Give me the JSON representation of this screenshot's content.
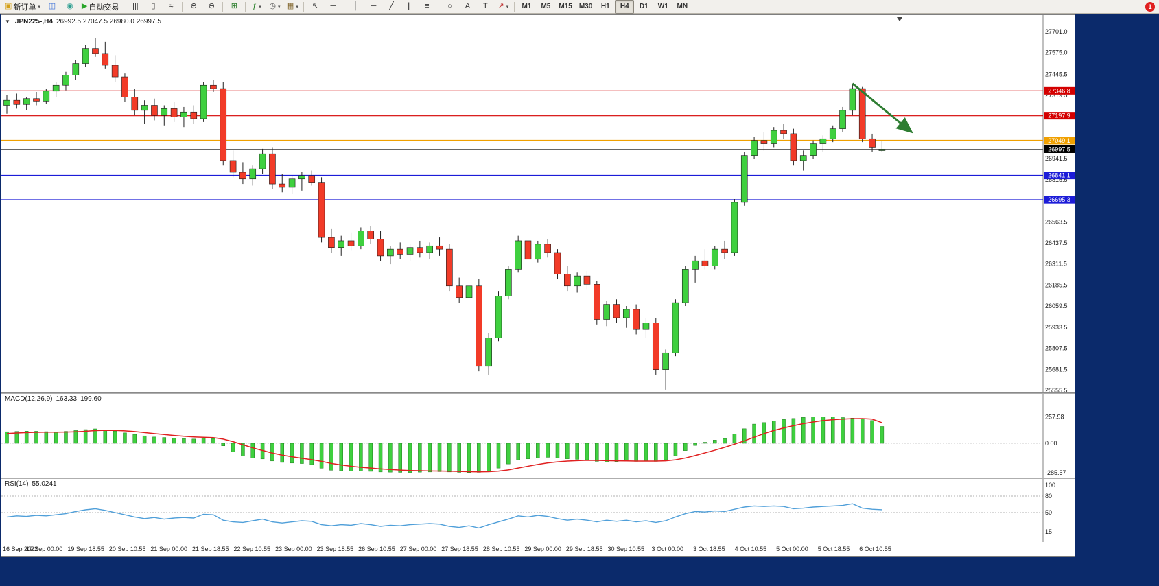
{
  "toolbar": {
    "notification_badge": "1",
    "timeframes": [
      "M1",
      "M5",
      "M15",
      "M30",
      "H1",
      "H4",
      "D1",
      "W1",
      "MN"
    ],
    "active_timeframe": "H4",
    "items": [
      {
        "name": "new-order-button",
        "icon": "new-order-icon",
        "label": "新订单",
        "caret": true
      },
      {
        "name": "market-watch-button",
        "icon": "market-watch-icon"
      },
      {
        "name": "data-window-button",
        "icon": "data-window-icon"
      },
      {
        "name": "autotrade-button",
        "icon": "autotrade-icon",
        "label": "自动交易"
      },
      {
        "sep": true
      },
      {
        "name": "bar-chart-button",
        "icon": "bar-chart-icon"
      },
      {
        "name": "candle-chart-button",
        "icon": "candle-chart-icon"
      },
      {
        "name": "line-chart-button",
        "icon": "line-chart-icon"
      },
      {
        "sep": true
      },
      {
        "name": "zoom-in-button",
        "icon": "zoom-in-icon"
      },
      {
        "name": "zoom-out-button",
        "icon": "zoom-out-icon"
      },
      {
        "sep": true
      },
      {
        "name": "tile-windows-button",
        "icon": "tile-windows-icon"
      },
      {
        "sep": true
      },
      {
        "name": "indicators-button",
        "icon": "indicators-icon",
        "caret": true
      },
      {
        "name": "periods-button",
        "icon": "clock-icon",
        "caret": true
      },
      {
        "name": "templates-button",
        "icon": "template-icon",
        "caret": true
      },
      {
        "sep": true
      },
      {
        "name": "cursor-button",
        "icon": "cursor-icon"
      },
      {
        "name": "crosshair-button",
        "icon": "crosshair-icon"
      },
      {
        "sep": true
      },
      {
        "name": "vertical-line-button",
        "icon": "vline-icon"
      },
      {
        "name": "horizontal-line-button",
        "icon": "hline-icon"
      },
      {
        "name": "trendline-button",
        "icon": "trendline-icon"
      },
      {
        "name": "channel-button",
        "icon": "channel-icon"
      },
      {
        "name": "fibonacci-button",
        "icon": "fibonacci-icon"
      },
      {
        "sep": true
      },
      {
        "name": "shapes-button",
        "icon": "shapes-icon"
      },
      {
        "name": "text-button",
        "icon": "text-icon"
      },
      {
        "name": "label-button",
        "icon": "label-icon"
      },
      {
        "name": "arrows-button",
        "icon": "arrow-tool-icon",
        "caret": true
      },
      {
        "sep": true
      }
    ],
    "icon_glyphs": {
      "new-order-icon": {
        "glyph": "▣",
        "color": "#d4a017"
      },
      "market-watch-icon": {
        "glyph": "◫",
        "color": "#3a6fd8"
      },
      "data-window-icon": {
        "glyph": "◉",
        "color": "#2a9d8f"
      },
      "autotrade-icon": {
        "glyph": "▶",
        "color": "#2aa52a"
      },
      "bar-chart-icon": {
        "glyph": "|||",
        "color": "#333333"
      },
      "candle-chart-icon": {
        "glyph": "▯",
        "color": "#333333"
      },
      "line-chart-icon": {
        "glyph": "≈",
        "color": "#333333"
      },
      "zoom-in-icon": {
        "glyph": "⊕",
        "color": "#333333"
      },
      "zoom-out-icon": {
        "glyph": "⊖",
        "color": "#333333"
      },
      "tile-windows-icon": {
        "glyph": "⊞",
        "color": "#2a7d2a"
      },
      "indicators-icon": {
        "glyph": "ƒ",
        "color": "#1f7a1f"
      },
      "clock-icon": {
        "glyph": "◷",
        "color": "#555555"
      },
      "template-icon": {
        "glyph": "▦",
        "color": "#7a5c1f"
      },
      "cursor-icon": {
        "glyph": "↖",
        "color": "#333333"
      },
      "crosshair-icon": {
        "glyph": "┼",
        "color": "#333333"
      },
      "vline-icon": {
        "glyph": "│",
        "color": "#333333"
      },
      "hline-icon": {
        "glyph": "─",
        "color": "#333333"
      },
      "trendline-icon": {
        "glyph": "╱",
        "color": "#333333"
      },
      "channel-icon": {
        "glyph": "∥",
        "color": "#333333"
      },
      "fibonacci-icon": {
        "glyph": "≡",
        "color": "#333333"
      },
      "shapes-icon": {
        "glyph": "○",
        "color": "#333333"
      },
      "text-icon": {
        "glyph": "A",
        "color": "#333333"
      },
      "label-icon": {
        "glyph": "T",
        "color": "#333333"
      },
      "arrow-tool-icon": {
        "glyph": "↗",
        "color": "#c03030"
      }
    }
  },
  "chart_window": {
    "collapse_icon": "▼",
    "symbol_period": "JPN225-,H4",
    "ohlc": "26992.5 27047.5 26980.0 26997.5"
  },
  "chart_data": {
    "type": "candlestick",
    "symbol": "JPN225-",
    "timeframe": "H4",
    "current_ohlc": {
      "open": 26992.5,
      "high": 27047.5,
      "low": 26980.0,
      "close": 26997.5
    },
    "current_price": 26997.5,
    "y_axis": {
      "top": 27701.0,
      "bottom": 25555.5,
      "labels": [
        "27701.0",
        "27575.0",
        "27445.5",
        "27319.5",
        "26941.5",
        "26815.5",
        "26563.5",
        "26437.5",
        "26311.5",
        "26185.5",
        "26059.5",
        "25933.5",
        "25807.5",
        "25681.5",
        "25555.5"
      ]
    },
    "x_axis_labels": [
      "16 Sep 2022",
      "19 Sep 00:00",
      "19 Sep 18:55",
      "20 Sep 10:55",
      "21 Sep 00:00",
      "21 Sep 18:55",
      "22 Sep 10:55",
      "23 Sep 00:00",
      "23 Sep 18:55",
      "26 Sep 10:55",
      "27 Sep 00:00",
      "27 Sep 18:55",
      "28 Sep 10:55",
      "29 Sep 00:00",
      "29 Sep 18:55",
      "30 Sep 10:55",
      "3 Oct 00:00",
      "3 Oct 18:55",
      "4 Oct 10:55",
      "5 Oct 00:00",
      "5 Oct 18:55",
      "6 Oct 10:55"
    ],
    "hlines": [
      {
        "price": 27346.8,
        "color": "red"
      },
      {
        "price": 27197.9,
        "color": "red"
      },
      {
        "price": 27049.1,
        "color": "orange"
      },
      {
        "price": 26841.1,
        "color": "blue"
      },
      {
        "price": 26695.3,
        "color": "blue"
      }
    ],
    "trend_arrow": {
      "from_bar": 86,
      "from_price": 27390,
      "to_bar": 92,
      "to_price": 27100
    },
    "colors": {
      "up": "#3fd03f",
      "down": "#f23b28",
      "wick": "#222222",
      "red": "#d40000",
      "blue": "#1c1cd8",
      "orange": "#f0a000",
      "current_line": "#666666",
      "current_badge": "#000000",
      "macd_hist": "#3fd03f",
      "macd_hist_stroke": "#1c7a1c",
      "macd_signal": "#e02020",
      "rsi": "#4f9fd9",
      "arrow": "#2e7d32"
    },
    "candles": [
      [
        27260,
        27320,
        27210,
        27290
      ],
      [
        27290,
        27330,
        27240,
        27265
      ],
      [
        27265,
        27310,
        27230,
        27300
      ],
      [
        27300,
        27340,
        27260,
        27285
      ],
      [
        27285,
        27360,
        27270,
        27345
      ],
      [
        27345,
        27400,
        27310,
        27380
      ],
      [
        27380,
        27460,
        27350,
        27440
      ],
      [
        27440,
        27530,
        27410,
        27510
      ],
      [
        27510,
        27620,
        27490,
        27600
      ],
      [
        27600,
        27660,
        27550,
        27570
      ],
      [
        27570,
        27640,
        27480,
        27500
      ],
      [
        27500,
        27560,
        27400,
        27430
      ],
      [
        27430,
        27450,
        27280,
        27310
      ],
      [
        27310,
        27360,
        27200,
        27230
      ],
      [
        27230,
        27290,
        27150,
        27260
      ],
      [
        27260,
        27300,
        27170,
        27200
      ],
      [
        27200,
        27260,
        27140,
        27240
      ],
      [
        27240,
        27280,
        27160,
        27190
      ],
      [
        27190,
        27250,
        27130,
        27220
      ],
      [
        27220,
        27260,
        27150,
        27180
      ],
      [
        27180,
        27400,
        27160,
        27380
      ],
      [
        27380,
        27410,
        27340,
        27360
      ],
      [
        27360,
        27400,
        26900,
        26930
      ],
      [
        26930,
        26990,
        26830,
        26860
      ],
      [
        26860,
        26920,
        26790,
        26820
      ],
      [
        26820,
        26900,
        26780,
        26880
      ],
      [
        26880,
        27000,
        26850,
        26970
      ],
      [
        26970,
        27010,
        26760,
        26790
      ],
      [
        26790,
        26850,
        26740,
        26770
      ],
      [
        26770,
        26840,
        26730,
        26820
      ],
      [
        26820,
        26860,
        26750,
        26840
      ],
      [
        26840,
        26870,
        26780,
        26800
      ],
      [
        26800,
        26830,
        26440,
        26470
      ],
      [
        26470,
        26520,
        26380,
        26410
      ],
      [
        26410,
        26480,
        26360,
        26450
      ],
      [
        26450,
        26500,
        26390,
        26420
      ],
      [
        26420,
        26530,
        26400,
        26510
      ],
      [
        26510,
        26540,
        26430,
        26460
      ],
      [
        26460,
        26510,
        26330,
        26360
      ],
      [
        26360,
        26420,
        26310,
        26400
      ],
      [
        26400,
        26440,
        26340,
        26370
      ],
      [
        26370,
        26430,
        26330,
        26410
      ],
      [
        26410,
        26450,
        26350,
        26380
      ],
      [
        26380,
        26440,
        26340,
        26420
      ],
      [
        26420,
        26470,
        26360,
        26400
      ],
      [
        26400,
        26430,
        26150,
        26180
      ],
      [
        26180,
        26230,
        26080,
        26110
      ],
      [
        26110,
        26200,
        26060,
        26180
      ],
      [
        26180,
        26220,
        25670,
        25700
      ],
      [
        25700,
        25900,
        25650,
        25870
      ],
      [
        25870,
        26150,
        25850,
        26120
      ],
      [
        26120,
        26300,
        26100,
        26280
      ],
      [
        26280,
        26480,
        26260,
        26450
      ],
      [
        26450,
        26470,
        26310,
        26340
      ],
      [
        26340,
        26450,
        26320,
        26430
      ],
      [
        26430,
        26460,
        26350,
        26380
      ],
      [
        26380,
        26400,
        26220,
        26250
      ],
      [
        26250,
        26300,
        26150,
        26180
      ],
      [
        26180,
        26260,
        26140,
        26240
      ],
      [
        26240,
        26270,
        26160,
        26190
      ],
      [
        26190,
        26210,
        25950,
        25980
      ],
      [
        25980,
        26090,
        25940,
        26070
      ],
      [
        26070,
        26100,
        25960,
        25990
      ],
      [
        25990,
        26060,
        25930,
        26040
      ],
      [
        26040,
        26070,
        25890,
        25920
      ],
      [
        25920,
        25990,
        25870,
        25960
      ],
      [
        25960,
        25990,
        25650,
        25680
      ],
      [
        25680,
        25800,
        25560,
        25780
      ],
      [
        25780,
        26100,
        25760,
        26080
      ],
      [
        26080,
        26300,
        26060,
        26280
      ],
      [
        26280,
        26360,
        26200,
        26330
      ],
      [
        26330,
        26400,
        26280,
        26300
      ],
      [
        26300,
        26420,
        26280,
        26400
      ],
      [
        26400,
        26450,
        26340,
        26380
      ],
      [
        26380,
        26700,
        26360,
        26680
      ],
      [
        26680,
        26980,
        26660,
        26960
      ],
      [
        26960,
        27070,
        26940,
        27050
      ],
      [
        27050,
        27100,
        26990,
        27030
      ],
      [
        27030,
        27130,
        27010,
        27110
      ],
      [
        27110,
        27150,
        27060,
        27090
      ],
      [
        27090,
        27120,
        26900,
        26930
      ],
      [
        26930,
        26990,
        26870,
        26960
      ],
      [
        26960,
        27050,
        26940,
        27030
      ],
      [
        27030,
        27080,
        26980,
        27060
      ],
      [
        27060,
        27140,
        27040,
        27120
      ],
      [
        27120,
        27250,
        27100,
        27230
      ],
      [
        27230,
        27390,
        27200,
        27360
      ],
      [
        27360,
        27370,
        27040,
        27060
      ],
      [
        27060,
        27090,
        26980,
        27010
      ],
      [
        26992.5,
        27047.5,
        26980.0,
        26997.5
      ]
    ],
    "macd": {
      "label": "MACD(12,26,9)",
      "main_value": "163.33",
      "signal_value": "199.60",
      "axis_labels": [
        "257.98",
        "0.00",
        "-285.57"
      ],
      "histogram": [
        112,
        115,
        118,
        117,
        113,
        110,
        116,
        124,
        133,
        140,
        131,
        119,
        101,
        86,
        72,
        61,
        56,
        51,
        46,
        41,
        50,
        46,
        -25,
        -85,
        -122,
        -142,
        -152,
        -172,
        -186,
        -192,
        -197,
        -207,
        -242,
        -262,
        -267,
        -271,
        -269,
        -273,
        -279,
        -281,
        -283,
        -284,
        -281,
        -279,
        -276,
        -279,
        -283,
        -285,
        -283,
        -270,
        -241,
        -201,
        -161,
        -151,
        -141,
        -136,
        -141,
        -151,
        -156,
        -161,
        -176,
        -181,
        -179,
        -173,
        -176,
        -171,
        -176,
        -161,
        -121,
        -71,
        -21,
        10,
        31,
        46,
        91,
        141,
        186,
        201,
        216,
        231,
        241,
        251,
        255,
        258,
        255,
        250,
        245,
        240,
        221,
        163.33
      ],
      "signal": [
        95,
        100,
        104,
        107,
        108,
        108,
        109,
        112,
        117,
        123,
        126,
        125,
        121,
        114,
        104,
        94,
        85,
        76,
        68,
        62,
        58,
        55,
        41,
        16,
        -14,
        -44,
        -70,
        -95,
        -115,
        -131,
        -146,
        -159,
        -176,
        -196,
        -211,
        -223,
        -233,
        -241,
        -249,
        -255,
        -261,
        -265,
        -267,
        -269,
        -270,
        -272,
        -274,
        -277,
        -278,
        -277,
        -271,
        -259,
        -241,
        -223,
        -206,
        -191,
        -181,
        -173,
        -169,
        -166,
        -167,
        -169,
        -171,
        -172,
        -173,
        -173,
        -173,
        -171,
        -161,
        -143,
        -119,
        -93,
        -67,
        -39,
        -9,
        24,
        59,
        94,
        124,
        149,
        171,
        191,
        207,
        221,
        229,
        235,
        239,
        240,
        235,
        199.6
      ]
    },
    "rsi": {
      "label": "RSI(14)",
      "value": "55.0241",
      "axis_labels": [
        "100",
        "80",
        "50",
        "15"
      ],
      "levels": [
        80,
        50
      ],
      "values": [
        42,
        44,
        43,
        45,
        44,
        46,
        48,
        52,
        55,
        57,
        54,
        50,
        46,
        42,
        39,
        41,
        38,
        40,
        41,
        40,
        47,
        46,
        36,
        33,
        32,
        35,
        38,
        33,
        31,
        33,
        35,
        34,
        28,
        26,
        28,
        27,
        30,
        28,
        25,
        27,
        26,
        28,
        29,
        30,
        29,
        25,
        23,
        26,
        22,
        28,
        33,
        38,
        44,
        42,
        45,
        43,
        39,
        36,
        38,
        36,
        33,
        36,
        34,
        36,
        33,
        35,
        32,
        35,
        42,
        48,
        52,
        51,
        53,
        52,
        56,
        60,
        62,
        61,
        62,
        61,
        57,
        58,
        60,
        61,
        62,
        63,
        66,
        58,
        56,
        55.02
      ]
    }
  }
}
